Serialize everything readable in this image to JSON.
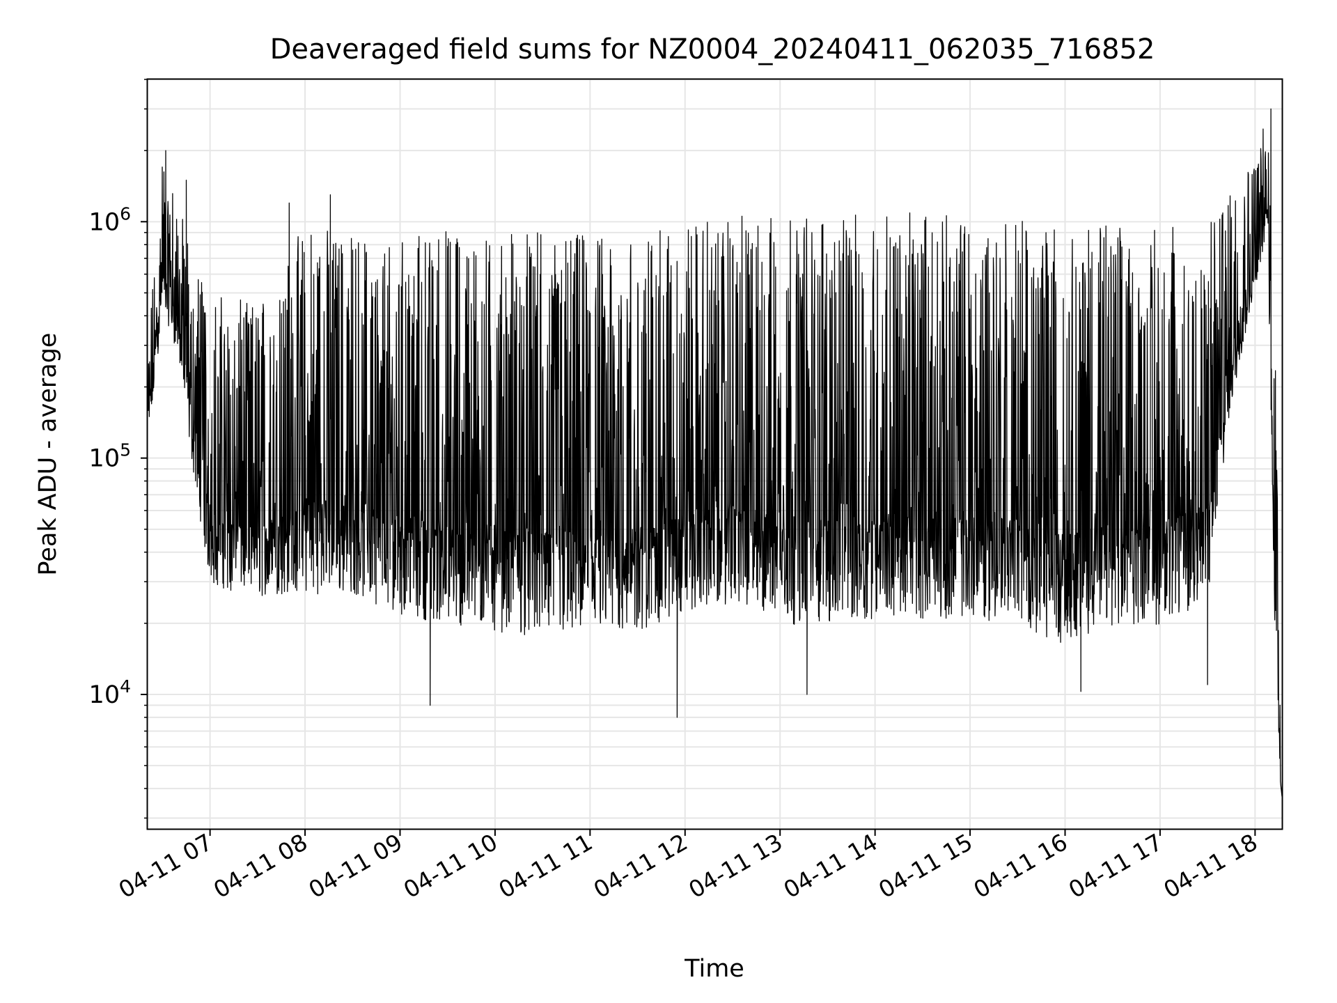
{
  "chart_data": {
    "type": "line",
    "title": "Deaveraged field sums for NZ0004_20240411_062035_716852",
    "xlabel": "Time",
    "ylabel": "Peak ADU - average",
    "x_type": "datetime",
    "xlim": [
      "2024-04-11 06:20:35",
      "2024-04-11 18:17:00"
    ],
    "yscale": "log",
    "ylim": [
      2700,
      4000000
    ],
    "grid": true,
    "x_ticks": [
      {
        "value": "2024-04-11 07:00",
        "label": "04-11 07"
      },
      {
        "value": "2024-04-11 08:00",
        "label": "04-11 08"
      },
      {
        "value": "2024-04-11 09:00",
        "label": "04-11 09"
      },
      {
        "value": "2024-04-11 10:00",
        "label": "04-11 10"
      },
      {
        "value": "2024-04-11 11:00",
        "label": "04-11 11"
      },
      {
        "value": "2024-04-11 12:00",
        "label": "04-11 12"
      },
      {
        "value": "2024-04-11 13:00",
        "label": "04-11 13"
      },
      {
        "value": "2024-04-11 14:00",
        "label": "04-11 14"
      },
      {
        "value": "2024-04-11 15:00",
        "label": "04-11 15"
      },
      {
        "value": "2024-04-11 16:00",
        "label": "04-11 16"
      },
      {
        "value": "2024-04-11 17:00",
        "label": "04-11 17"
      },
      {
        "value": "2024-04-11 18:00",
        "label": "04-11 18"
      }
    ],
    "y_ticks": [
      {
        "value": 10000,
        "base": "10",
        "exp": "4"
      },
      {
        "value": 100000,
        "base": "10",
        "exp": "5"
      },
      {
        "value": 1000000,
        "base": "10",
        "exp": "6"
      }
    ],
    "series": [
      {
        "color": "#000000",
        "envelope": [
          {
            "t": "2024-04-11 06:21",
            "low": 100000,
            "high": 300000
          },
          {
            "t": "2024-04-11 06:30",
            "low": 400000,
            "high": 2000000
          },
          {
            "t": "2024-04-11 06:40",
            "low": 250000,
            "high": 1200000
          },
          {
            "t": "2024-04-11 06:48",
            "low": 90000,
            "high": 800000
          },
          {
            "t": "2024-04-11 07:00",
            "low": 25000,
            "high": 500000
          },
          {
            "t": "2024-04-11 07:30",
            "low": 22000,
            "high": 450000
          },
          {
            "t": "2024-04-11 08:00",
            "low": 22000,
            "high": 1000000
          },
          {
            "t": "2024-04-11 08:30",
            "low": 22000,
            "high": 900000
          },
          {
            "t": "2024-04-11 09:00",
            "low": 18000,
            "high": 900000
          },
          {
            "t": "2024-04-11 09:30",
            "low": 16000,
            "high": 950000
          },
          {
            "t": "2024-04-11 10:00",
            "low": 15000,
            "high": 950000
          },
          {
            "t": "2024-04-11 10:30",
            "low": 14000,
            "high": 900000
          },
          {
            "t": "2024-04-11 11:00",
            "low": 14000,
            "high": 900000
          },
          {
            "t": "2024-04-11 11:30",
            "low": 15000,
            "high": 850000
          },
          {
            "t": "2024-04-11 12:00",
            "low": 18000,
            "high": 1000000
          },
          {
            "t": "2024-04-11 12:30",
            "low": 20000,
            "high": 1050000
          },
          {
            "t": "2024-04-11 13:00",
            "low": 16000,
            "high": 1100000
          },
          {
            "t": "2024-04-11 13:30",
            "low": 16000,
            "high": 1050000
          },
          {
            "t": "2024-04-11 14:00",
            "low": 17000,
            "high": 1100000
          },
          {
            "t": "2024-04-11 14:30",
            "low": 17000,
            "high": 1100000
          },
          {
            "t": "2024-04-11 15:00",
            "low": 17000,
            "high": 1100000
          },
          {
            "t": "2024-04-11 15:30",
            "low": 16000,
            "high": 1050000
          },
          {
            "t": "2024-04-11 16:00",
            "low": 13000,
            "high": 1100000
          },
          {
            "t": "2024-04-11 16:30",
            "low": 16000,
            "high": 950000
          },
          {
            "t": "2024-04-11 17:00",
            "low": 16000,
            "high": 950000
          },
          {
            "t": "2024-04-11 17:30",
            "low": 20000,
            "high": 950000
          },
          {
            "t": "2024-04-11 17:45",
            "low": 150000,
            "high": 1500000
          },
          {
            "t": "2024-04-11 18:00",
            "low": 500000,
            "high": 1800000
          },
          {
            "t": "2024-04-11 18:08",
            "low": 800000,
            "high": 3000000
          },
          {
            "t": "2024-04-11 18:12",
            "low": 20000,
            "high": 800000
          },
          {
            "t": "2024-04-11 18:16",
            "low": 3800,
            "high": 15000
          }
        ],
        "notable_points": [
          {
            "t": "2024-04-11 06:32",
            "y": 2000000
          },
          {
            "t": "2024-04-11 06:45",
            "y": 1500000
          },
          {
            "t": "2024-04-11 07:50",
            "y": 1200000
          },
          {
            "t": "2024-04-11 08:16",
            "y": 1300000
          },
          {
            "t": "2024-04-11 09:19",
            "y": 9000
          },
          {
            "t": "2024-04-11 11:55",
            "y": 8000
          },
          {
            "t": "2024-04-11 13:17",
            "y": 10000
          },
          {
            "t": "2024-04-11 16:10",
            "y": 10300
          },
          {
            "t": "2024-04-11 17:30",
            "y": 11000
          },
          {
            "t": "2024-04-11 18:10",
            "y": 3000000
          },
          {
            "t": "2024-04-11 18:17",
            "y": 3700
          }
        ]
      }
    ]
  }
}
